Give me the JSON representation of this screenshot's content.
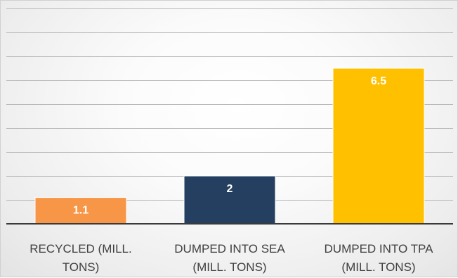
{
  "chart_data": {
    "type": "bar",
    "categories": [
      [
        "RECYCLED (MILL.",
        "TONS)"
      ],
      [
        "DUMPED INTO SEA",
        "(MILL. TONS)"
      ],
      [
        "DUMPED INTO TPA",
        "(MILL. TONS)"
      ]
    ],
    "values": [
      1.1,
      2,
      6.5
    ],
    "data_labels": [
      "1.1",
      "2",
      "6.5"
    ],
    "bar_colors": [
      "#F79646",
      "#243F60",
      "#FFC000"
    ],
    "ylim": [
      0,
      9
    ],
    "grid": true,
    "title": "",
    "xlabel": "",
    "ylabel": ""
  }
}
